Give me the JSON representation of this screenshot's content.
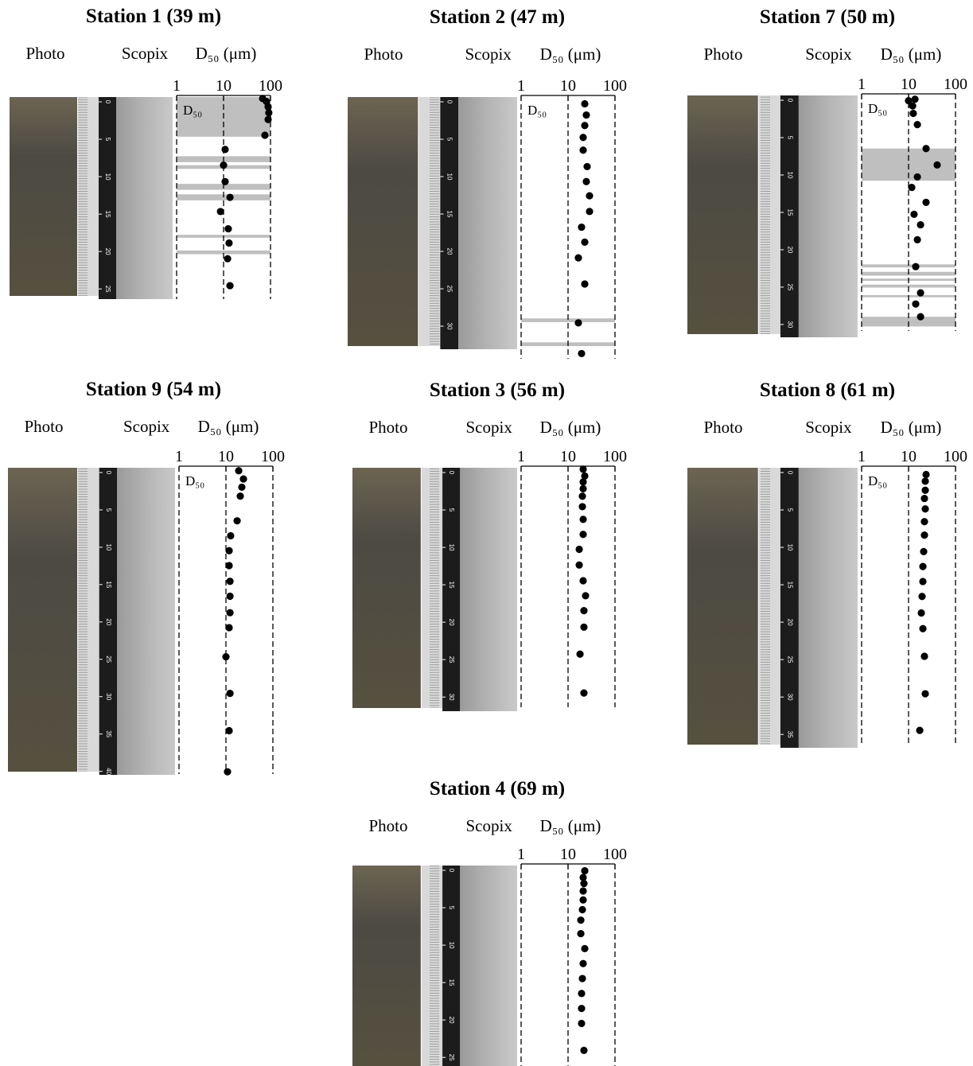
{
  "chart_data": [
    {
      "type": "scatter",
      "title": "Station 1 (39 m)",
      "photo_label": "Photo",
      "scopix_label": "Scopix",
      "xlabel": "D₅₀ (μm)",
      "band_label": "D₅₀",
      "x": [
        68,
        82,
        89,
        92,
        89,
        76,
        10.8,
        10,
        10.8,
        13.7,
        8.6,
        12.6,
        13.1,
        12.2,
        13.7
      ],
      "y": [
        0.2,
        0.6,
        1.3,
        2.1,
        3,
        5.1,
        7,
        9.1,
        11.3,
        13.4,
        15.3,
        17.6,
        19.5,
        21.6,
        25.2
      ],
      "bands": [
        [
          0,
          5.3
        ],
        [
          7.9,
          8.7
        ],
        [
          9.1,
          9.6
        ],
        [
          11.6,
          12.4
        ],
        [
          13,
          13.8
        ],
        [
          18.4,
          18.8
        ],
        [
          20.5,
          21
        ]
      ],
      "band_color": "#bfbfbf",
      "xscale": "log",
      "xlim": [
        1,
        100
      ],
      "xticks": [
        1,
        10,
        100
      ],
      "ylim": [
        0,
        27
      ],
      "depth_ticks": [
        0,
        5,
        10,
        15,
        20,
        25
      ],
      "grid": true,
      "color": "#000000"
    },
    {
      "type": "scatter",
      "title": "Station 2 (47 m)",
      "photo_label": "Photo",
      "scopix_label": "Scopix",
      "xlabel": "D₅₀ (μm)",
      "band_label": "D₅₀",
      "x": [
        22.7,
        24.5,
        22.7,
        21,
        21,
        25.5,
        24.5,
        28.7,
        28.7,
        19.4,
        22.7,
        16.6,
        22.7,
        16.6,
        19.4
      ],
      "y": [
        0.9,
        2.4,
        3.8,
        5.4,
        7.1,
        9.3,
        11.3,
        13.2,
        15.3,
        17.4,
        19.4,
        21.5,
        25,
        30.2,
        34.3
      ],
      "bands": [
        [
          29.6,
          30.1
        ],
        [
          32.8,
          33.3
        ]
      ],
      "band_color": "#bfbfbf",
      "xscale": "log",
      "xlim": [
        1,
        100
      ],
      "xticks": [
        1,
        10,
        100
      ],
      "ylim": [
        0,
        35
      ],
      "depth_ticks": [
        0,
        5,
        10,
        15,
        20,
        25,
        30
      ],
      "grid": true,
      "color": "#000000"
    },
    {
      "type": "scatter",
      "title": "Station 7 (50 m)",
      "photo_label": "Photo",
      "scopix_label": "Scopix",
      "xlabel": "D₅₀ (μm)",
      "band_label": "D₅₀",
      "x": [
        10,
        13.7,
        12.2,
        12.6,
        15.4,
        23.6,
        40.7,
        15.4,
        11.7,
        23.6,
        13.1,
        18,
        15.4,
        14.2,
        18,
        14.2,
        18
      ],
      "y": [
        0.7,
        0.5,
        1.4,
        2.4,
        3.9,
        7.1,
        9.3,
        10.9,
        12.3,
        14.3,
        15.9,
        17.3,
        19.3,
        22.9,
        26.4,
        27.9,
        29.6
      ],
      "bands": [
        [
          7.1,
          11.4
        ],
        [
          22.6,
          23
        ],
        [
          23.6,
          24.1
        ],
        [
          24.5,
          24.8
        ],
        [
          25.3,
          25.7
        ],
        [
          26.7,
          27
        ],
        [
          29.6,
          30.9
        ]
      ],
      "band_color": "#bfbfbf",
      "xscale": "log",
      "xlim": [
        1,
        100
      ],
      "xticks": [
        1,
        10,
        100
      ],
      "ylim": [
        0,
        31.5
      ],
      "depth_ticks": [
        0,
        5,
        10,
        15,
        20,
        25,
        30
      ],
      "grid": true,
      "color": "#000000"
    },
    {
      "type": "scatter",
      "title": "Station 9 (54 m)",
      "photo_label": "Photo",
      "scopix_label": "Scopix",
      "xlabel": "D₅₀ (μm)",
      "band_label": "D₅₀",
      "x": [
        18.7,
        23.6,
        21.8,
        20.2,
        17.3,
        12.6,
        11.7,
        11.7,
        12.2,
        12.2,
        12.2,
        11.7,
        10,
        12.2,
        11.7,
        10.8
      ],
      "y": [
        0.4,
        1.5,
        2.6,
        3.8,
        7.1,
        9.1,
        11.1,
        13.1,
        15.2,
        17.2,
        19.4,
        21.4,
        25.3,
        30.2,
        35.2,
        40.7
      ],
      "bands": [],
      "band_color": "#bfbfbf",
      "xscale": "log",
      "xlim": [
        1,
        100
      ],
      "xticks": [
        1,
        10,
        100
      ],
      "ylim": [
        0,
        41
      ],
      "depth_ticks": [
        0,
        5,
        10,
        15,
        20,
        25,
        30,
        35,
        40
      ],
      "grid": true,
      "color": "#000000"
    },
    {
      "type": "scatter",
      "title": "Station 3 (56 m)",
      "photo_label": "Photo",
      "scopix_label": "Scopix",
      "xlabel": "D₅₀ (μm)",
      "x": [
        21,
        22.7,
        21,
        21,
        20.2,
        20.2,
        21,
        21,
        17.3,
        17.3,
        21,
        23.6,
        21.8,
        21.8,
        18,
        21.8
      ],
      "y": [
        0.2,
        1.1,
        1.9,
        2.8,
        3.8,
        5.2,
        6.9,
        8.9,
        10.9,
        13,
        15.1,
        17.1,
        19.1,
        21.3,
        24.9,
        30.1
      ],
      "bands": [],
      "band_color": "#bfbfbf",
      "xscale": "log",
      "xlim": [
        1,
        100
      ],
      "xticks": [
        1,
        10,
        100
      ],
      "ylim": [
        0,
        32
      ],
      "depth_ticks": [
        0,
        5,
        10,
        15,
        20,
        25,
        30
      ],
      "grid": true,
      "color": "#000000"
    },
    {
      "type": "scatter",
      "title": "Station 8 (61 m)",
      "photo_label": "Photo",
      "scopix_label": "Scopix",
      "xlabel": "D₅₀ (μm)",
      "band_label": "D₅₀",
      "x": [
        23.6,
        22.7,
        22.7,
        21.8,
        22.7,
        21.8,
        21.8,
        21,
        20.2,
        20.2,
        19.4,
        18.7,
        20.2,
        21.8,
        22.7,
        17.3
      ],
      "y": [
        0.9,
        1.8,
        3,
        4.1,
        5.5,
        7.2,
        9,
        11.2,
        13.2,
        15.2,
        17.2,
        19.4,
        21.5,
        25.2,
        30.2,
        35.1
      ],
      "bands": [],
      "band_color": "#bfbfbf",
      "xscale": "log",
      "xlim": [
        1,
        100
      ],
      "xticks": [
        1,
        10,
        100
      ],
      "ylim": [
        0,
        37
      ],
      "depth_ticks": [
        0,
        5,
        10,
        15,
        20,
        25,
        30,
        35
      ],
      "grid": true,
      "color": "#000000"
    },
    {
      "type": "scatter",
      "title": "Station 4 (69 m)",
      "photo_label": "Photo",
      "scopix_label": "Scopix",
      "xlabel": "D₅₀ (μm)",
      "x": [
        22.7,
        21,
        21.8,
        21,
        21,
        20.2,
        18.7,
        18.7,
        22.7,
        21,
        20.2,
        19.4,
        19.4,
        19.4,
        21.8
      ],
      "y": [
        0.7,
        1.6,
        2.4,
        3.4,
        4.6,
        5.9,
        7.3,
        9.1,
        11.1,
        13.1,
        15.1,
        17.1,
        19.1,
        21.1,
        24.7
      ],
      "bands": [],
      "band_color": "#bfbfbf",
      "xscale": "log",
      "xlim": [
        1,
        100
      ],
      "xticks": [
        1,
        10,
        100
      ],
      "ylim": [
        0,
        27
      ],
      "depth_ticks": [
        0,
        5,
        10,
        15,
        20,
        25
      ],
      "grid": true,
      "color": "#000000"
    }
  ]
}
